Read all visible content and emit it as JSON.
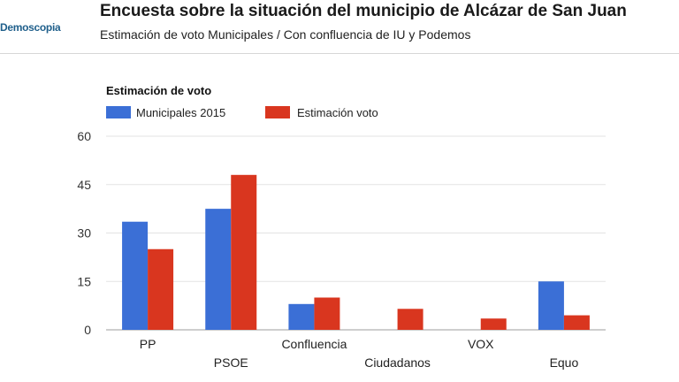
{
  "header": {
    "brand": "Demoscopia",
    "title": "Encuesta sobre la situación del municipio de Alcázar de San Juan",
    "subtitle": "Estimación de voto Municipales / Con confluencia de IU y Podemos"
  },
  "colors": {
    "series1": "#3b6fd6",
    "series2": "#d9361f",
    "grid": "#e3e3e3"
  },
  "chart_data": {
    "type": "bar",
    "title": "Estimación de voto",
    "categories": [
      "PP",
      "PSOE",
      "Confluencia",
      "Ciudadanos",
      "VOX",
      "Equo"
    ],
    "series": [
      {
        "name": "Municipales 2015",
        "values": [
          33.5,
          37.5,
          8,
          0,
          0,
          15
        ]
      },
      {
        "name": "Estimación voto",
        "values": [
          25,
          48,
          10,
          6.5,
          3.5,
          4.5
        ]
      }
    ],
    "yticks": [
      0,
      15,
      30,
      45,
      60
    ],
    "ylim": [
      0,
      60
    ],
    "legend": "top-left",
    "grid": true
  }
}
